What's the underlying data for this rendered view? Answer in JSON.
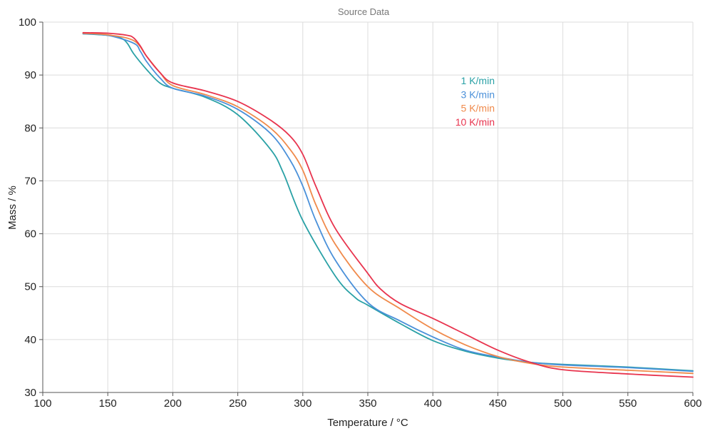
{
  "chart_data": {
    "type": "line",
    "title": "Source Data",
    "xlabel": "Temperature / °C",
    "ylabel": "Mass / %",
    "xlim": [
      100,
      600
    ],
    "ylim": [
      30,
      100
    ],
    "xticks": [
      100,
      150,
      200,
      250,
      300,
      350,
      400,
      450,
      500,
      550,
      600
    ],
    "yticks": [
      30,
      40,
      50,
      60,
      70,
      80,
      90,
      100
    ],
    "grid": true,
    "legend_position": "top-right-center",
    "series": [
      {
        "name": "1 K/min",
        "color": "#2aa1a6",
        "points": [
          [
            131,
            97.8
          ],
          [
            150,
            97.5
          ],
          [
            160,
            97.0
          ],
          [
            165,
            96.0
          ],
          [
            170,
            94.0
          ],
          [
            180,
            91.0
          ],
          [
            190,
            88.5
          ],
          [
            200,
            87.5
          ],
          [
            225,
            85.8
          ],
          [
            250,
            82.5
          ],
          [
            275,
            76.0
          ],
          [
            285,
            71.5
          ],
          [
            300,
            62.5
          ],
          [
            325,
            52.0
          ],
          [
            340,
            48.0
          ],
          [
            350,
            46.5
          ],
          [
            375,
            43.0
          ],
          [
            400,
            39.8
          ],
          [
            425,
            37.8
          ],
          [
            450,
            36.5
          ],
          [
            475,
            35.7
          ],
          [
            500,
            35.3
          ],
          [
            550,
            34.8
          ],
          [
            600,
            34.1
          ]
        ]
      },
      {
        "name": "3 K/min",
        "color": "#4a90d9",
        "points": [
          [
            131,
            97.8
          ],
          [
            150,
            97.5
          ],
          [
            170,
            96.0
          ],
          [
            175,
            94.5
          ],
          [
            180,
            92.5
          ],
          [
            190,
            89.5
          ],
          [
            200,
            87.5
          ],
          [
            225,
            86.0
          ],
          [
            250,
            83.5
          ],
          [
            275,
            79.0
          ],
          [
            290,
            74.0
          ],
          [
            300,
            69.0
          ],
          [
            310,
            62.5
          ],
          [
            325,
            55.0
          ],
          [
            350,
            47.0
          ],
          [
            375,
            43.5
          ],
          [
            400,
            40.5
          ],
          [
            425,
            38.0
          ],
          [
            450,
            36.7
          ],
          [
            475,
            35.7
          ],
          [
            500,
            35.2
          ],
          [
            550,
            34.7
          ],
          [
            600,
            34.0
          ]
        ]
      },
      {
        "name": "5 K/min",
        "color": "#f08a4b",
        "points": [
          [
            131,
            97.9
          ],
          [
            150,
            97.6
          ],
          [
            170,
            96.5
          ],
          [
            180,
            93.5
          ],
          [
            190,
            90.5
          ],
          [
            200,
            88.0
          ],
          [
            225,
            86.3
          ],
          [
            250,
            84.0
          ],
          [
            275,
            80.0
          ],
          [
            290,
            76.0
          ],
          [
            300,
            72.0
          ],
          [
            310,
            65.5
          ],
          [
            325,
            58.0
          ],
          [
            350,
            50.0
          ],
          [
            375,
            45.8
          ],
          [
            400,
            42.0
          ],
          [
            425,
            39.0
          ],
          [
            450,
            36.8
          ],
          [
            475,
            35.5
          ],
          [
            500,
            34.8
          ],
          [
            550,
            34.2
          ],
          [
            600,
            33.6
          ]
        ]
      },
      {
        "name": "10 K/min",
        "color": "#e8344e",
        "points": [
          [
            131,
            98.0
          ],
          [
            150,
            97.9
          ],
          [
            165,
            97.5
          ],
          [
            170,
            97.0
          ],
          [
            175,
            95.5
          ],
          [
            180,
            93.5
          ],
          [
            190,
            90.5
          ],
          [
            200,
            88.5
          ],
          [
            225,
            87.0
          ],
          [
            250,
            85.0
          ],
          [
            275,
            81.5
          ],
          [
            290,
            78.5
          ],
          [
            300,
            75.0
          ],
          [
            310,
            69.0
          ],
          [
            325,
            61.0
          ],
          [
            350,
            52.5
          ],
          [
            360,
            49.5
          ],
          [
            375,
            46.8
          ],
          [
            400,
            44.0
          ],
          [
            425,
            41.0
          ],
          [
            450,
            38.0
          ],
          [
            475,
            35.7
          ],
          [
            500,
            34.3
          ],
          [
            550,
            33.5
          ],
          [
            600,
            32.9
          ]
        ]
      }
    ]
  }
}
